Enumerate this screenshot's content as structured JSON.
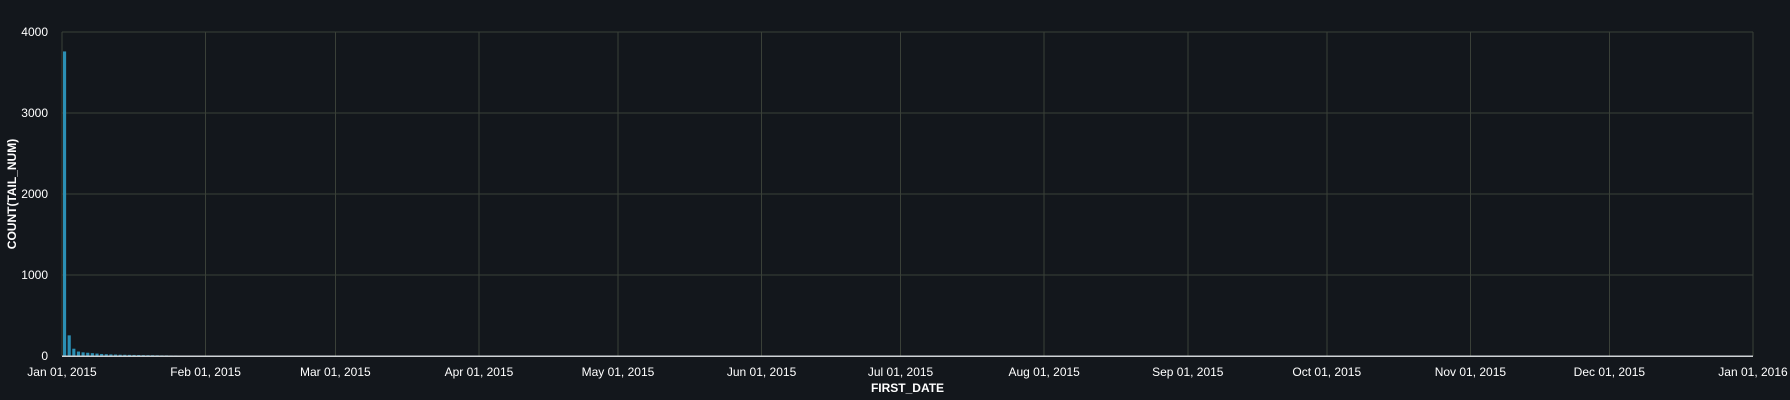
{
  "chart_data": {
    "type": "bar",
    "xlabel": "FIRST_DATE",
    "ylabel": "COUNT(TAIL_NUM)",
    "ylim": [
      0,
      4000
    ],
    "yticks": [
      "0",
      "1000",
      "2000",
      "3000",
      "4000"
    ],
    "xlim": [
      "2015-01-01",
      "2016-01-01"
    ],
    "xticks": [
      {
        "date": "2015-01-01",
        "label": "Jan 01, 2015"
      },
      {
        "date": "2015-02-01",
        "label": "Feb 01, 2015"
      },
      {
        "date": "2015-03-01",
        "label": "Mar 01, 2015"
      },
      {
        "date": "2015-04-01",
        "label": "Apr 01, 2015"
      },
      {
        "date": "2015-05-01",
        "label": "May 01, 2015"
      },
      {
        "date": "2015-06-01",
        "label": "Jun 01, 2015"
      },
      {
        "date": "2015-07-01",
        "label": "Jul 01, 2015"
      },
      {
        "date": "2015-08-01",
        "label": "Aug 01, 2015"
      },
      {
        "date": "2015-09-01",
        "label": "Sep 01, 2015"
      },
      {
        "date": "2015-10-01",
        "label": "Oct 01, 2015"
      },
      {
        "date": "2015-11-01",
        "label": "Nov 01, 2015"
      },
      {
        "date": "2015-12-01",
        "label": "Dec 01, 2015"
      },
      {
        "date": "2016-01-01",
        "label": "Jan 01, 2016"
      }
    ],
    "grid": true,
    "bar_color": "#2b8fb3",
    "background_color": "#13171c",
    "series": [
      {
        "x": [
          "2015-01-01",
          "2015-01-02",
          "2015-01-03",
          "2015-01-04",
          "2015-01-05",
          "2015-01-06",
          "2015-01-07",
          "2015-01-08",
          "2015-01-09",
          "2015-01-10",
          "2015-01-11",
          "2015-01-12",
          "2015-01-13",
          "2015-01-14",
          "2015-01-15",
          "2015-01-16",
          "2015-01-17",
          "2015-01-18",
          "2015-01-19",
          "2015-01-20",
          "2015-01-21",
          "2015-01-22",
          "2015-01-23",
          "2015-01-24",
          "2015-01-25",
          "2015-01-26",
          "2015-01-27",
          "2015-01-28",
          "2015-01-29",
          "2015-01-30",
          "2015-01-31",
          "2015-02-05",
          "2015-02-12",
          "2015-02-20",
          "2015-03-03",
          "2015-03-15",
          "2015-04-02",
          "2015-05-10",
          "2015-06-18",
          "2015-08-05"
        ],
        "values": [
          3760,
          255,
          90,
          55,
          45,
          40,
          35,
          30,
          25,
          22,
          20,
          18,
          16,
          15,
          14,
          13,
          12,
          11,
          10,
          10,
          9,
          8,
          8,
          7,
          7,
          6,
          6,
          5,
          5,
          5,
          4,
          4,
          3,
          3,
          3,
          2,
          2,
          2,
          2,
          1
        ]
      }
    ]
  }
}
